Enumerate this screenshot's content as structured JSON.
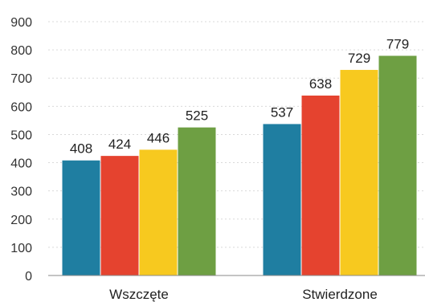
{
  "chart_data": {
    "type": "bar",
    "categories": [
      "Wszczęte",
      "Stwierdzone"
    ],
    "series": [
      {
        "values": [
          408,
          537
        ],
        "color": "#1f7ea1"
      },
      {
        "values": [
          424,
          638
        ],
        "color": "#e5432f"
      },
      {
        "values": [
          446,
          729
        ],
        "color": "#f7c91f"
      },
      {
        "values": [
          525,
          779
        ],
        "color": "#6e9f43"
      }
    ],
    "title": "",
    "xlabel": "",
    "ylabel": "",
    "ylim": [
      0,
      900
    ],
    "yticks": [
      "0",
      "100",
      "200",
      "300",
      "400",
      "500",
      "600",
      "700",
      "800",
      "900"
    ],
    "grid": true,
    "legend": "none",
    "data_labels": true
  }
}
